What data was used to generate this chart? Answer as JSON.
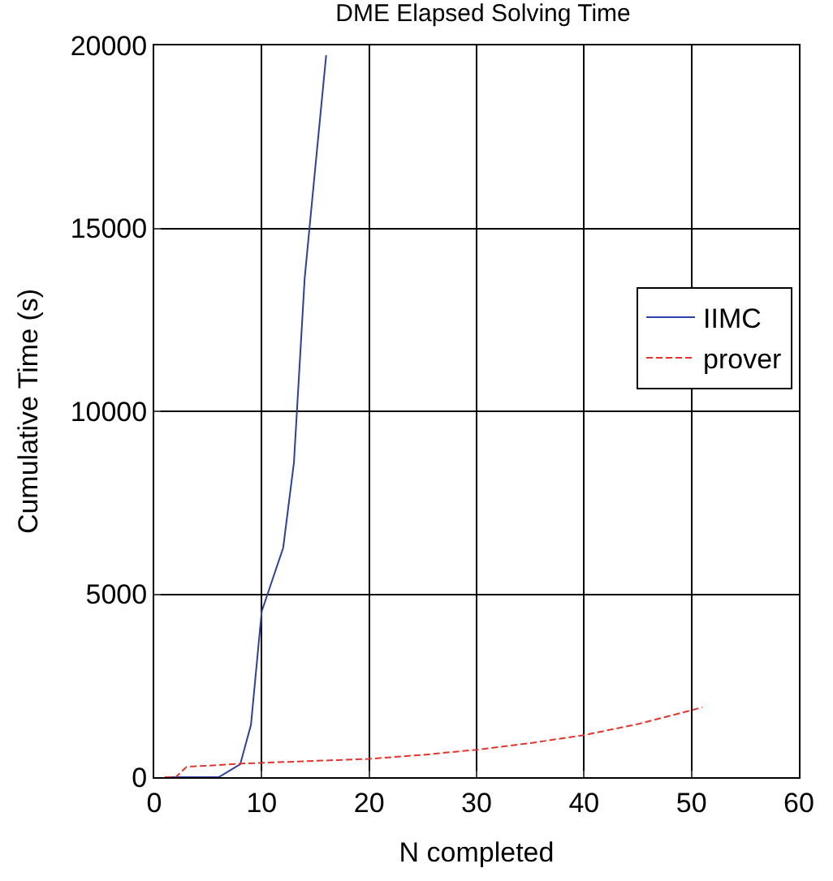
{
  "chart_data": {
    "type": "line",
    "title": "DME Elapsed Solving Time",
    "xlabel": "N completed",
    "ylabel": "Cumulative Time (s)",
    "xlim": [
      0,
      60
    ],
    "xticks": [
      0,
      10,
      20,
      30,
      40,
      50,
      60
    ],
    "ylim": [
      0,
      20000
    ],
    "yticks": [
      0,
      5000,
      10000,
      15000,
      20000
    ],
    "grid": true,
    "legend": "right",
    "series": [
      {
        "name": "IIMC",
        "color": "#2b3fa8",
        "line_style": "solid",
        "x": [
          1,
          6,
          8,
          9,
          10,
          11,
          12,
          13,
          14,
          15,
          16
        ],
        "values": [
          0,
          0,
          350,
          1430,
          4530,
          5400,
          6270,
          8600,
          13640,
          16700,
          19730
        ]
      },
      {
        "name": "prover",
        "color": "#e8322a",
        "line_style": "dashed",
        "x": [
          1,
          2,
          3,
          8,
          20,
          25,
          30,
          35,
          40,
          45,
          50,
          51
        ],
        "values": [
          0,
          0,
          280,
          370,
          500,
          610,
          750,
          930,
          1150,
          1450,
          1830,
          1910
        ]
      }
    ]
  }
}
